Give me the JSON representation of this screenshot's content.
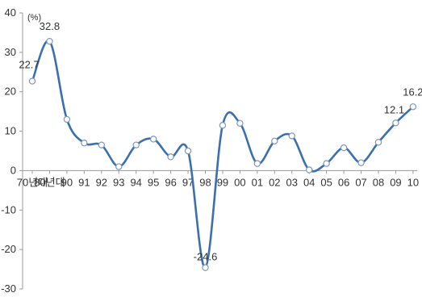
{
  "chart_data": {
    "type": "line",
    "unit": "(%)",
    "categories": [
      "70년대",
      "80년대",
      "90",
      "91",
      "92",
      "93",
      "94",
      "95",
      "96",
      "97",
      "98",
      "99",
      "00",
      "01",
      "02",
      "03",
      "04",
      "05",
      "06",
      "07",
      "08",
      "09",
      "10"
    ],
    "values": [
      22.7,
      32.8,
      13.0,
      7.0,
      6.5,
      1.0,
      6.5,
      8.0,
      3.5,
      5.0,
      -24.6,
      11.5,
      12.0,
      1.8,
      7.5,
      8.8,
      0.2,
      1.8,
      5.8,
      2.0,
      7.2,
      12.1,
      16.2
    ],
    "data_labels": [
      {
        "index": 0,
        "text": "22.7"
      },
      {
        "index": 1,
        "text": "32.8"
      },
      {
        "index": 10,
        "text": "-24.6"
      },
      {
        "index": 21,
        "text": "12.1"
      },
      {
        "index": 22,
        "text": "16.2"
      }
    ],
    "ylim": [
      -30,
      40
    ],
    "yticks": [
      40,
      30,
      20,
      10,
      0,
      -10,
      -20,
      -30
    ],
    "xlabel": "",
    "ylabel": "",
    "line_color": "#3a6fb0",
    "marker_fill": "#ffffff",
    "axis_color": "#999999",
    "grid": false,
    "legend": false
  }
}
